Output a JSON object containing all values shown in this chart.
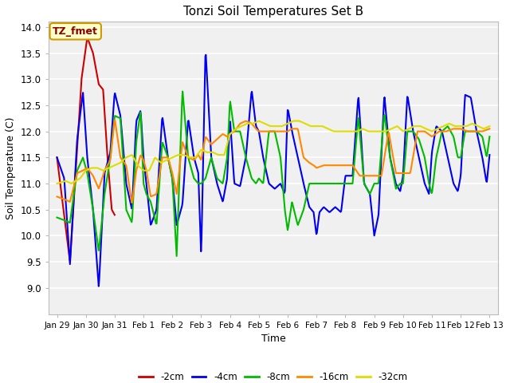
{
  "title": "Tonzi Soil Temperatures Set B",
  "xlabel": "Time",
  "ylabel": "Soil Temperature (C)",
  "ylim": [
    8.5,
    14.1
  ],
  "yticks": [
    9.0,
    9.5,
    10.0,
    10.5,
    11.0,
    11.5,
    12.0,
    12.5,
    13.0,
    13.5,
    14.0
  ],
  "annotation_label": "TZ_fmet",
  "fig_bg": "#ffffff",
  "plot_bg": "#ffffff",
  "grid_color": "#dddddd",
  "xtick_labels": [
    "Jan 29",
    "Jan 30",
    "Jan 31",
    "Feb 1",
    "Feb 2",
    "Feb 3",
    "Feb 4",
    "Feb 5",
    "Feb 6",
    "Feb 7",
    "Feb 8",
    "Feb 9",
    "Feb 10",
    "Feb 11",
    "Feb 12",
    "Feb 13"
  ],
  "xtick_positions": [
    0,
    1,
    2,
    3,
    4,
    5,
    6,
    7,
    8,
    9,
    10,
    11,
    12,
    13,
    14,
    15
  ],
  "legend_entries": [
    "-2cm",
    "-4cm",
    "-8cm",
    "-16cm",
    "-32cm"
  ],
  "legend_colors": [
    "#cc0000",
    "#0000ee",
    "#00bb00",
    "#ff8800",
    "#dddd00"
  ],
  "series_colors": {
    "-2cm": "#cc0000",
    "-4cm": "#0000ee",
    "-8cm": "#00bb00",
    "-16cm": "#ff8800",
    "-32cm": "#dddd00"
  },
  "red_x": [
    0.0,
    0.45,
    0.85,
    1.05,
    1.25,
    1.45,
    1.6,
    1.75,
    1.9,
    2.0
  ],
  "red_y": [
    11.5,
    9.5,
    13.0,
    13.8,
    13.5,
    12.9,
    12.8,
    11.5,
    10.5,
    10.4
  ],
  "blue_x": [
    0.0,
    0.25,
    0.45,
    0.7,
    0.9,
    1.05,
    1.25,
    1.45,
    1.65,
    1.85,
    2.0,
    2.2,
    2.4,
    2.6,
    2.75,
    2.9,
    3.0,
    3.1,
    3.25,
    3.45,
    3.65,
    3.85,
    4.0,
    4.15,
    4.35,
    4.55,
    4.75,
    4.9,
    5.0,
    5.15,
    5.35,
    5.55,
    5.75,
    5.9,
    6.0,
    6.15,
    6.35,
    6.55,
    6.75,
    6.9,
    7.0,
    7.15,
    7.35,
    7.55,
    7.75,
    7.9,
    8.0,
    8.15,
    8.35,
    8.55,
    8.75,
    8.9,
    9.0,
    9.1,
    9.25,
    9.45,
    9.65,
    9.85,
    10.0,
    10.1,
    10.25,
    10.45,
    10.65,
    10.85,
    11.0,
    11.15,
    11.35,
    11.55,
    11.75,
    11.9,
    12.0,
    12.15,
    12.35,
    12.55,
    12.75,
    12.9,
    13.0,
    13.15,
    13.35,
    13.55,
    13.75,
    13.9,
    14.0,
    14.15,
    14.35,
    14.55,
    14.75,
    14.9,
    15.0
  ],
  "blue_y": [
    11.5,
    11.1,
    9.45,
    11.85,
    12.75,
    11.5,
    10.5,
    9.0,
    11.2,
    11.6,
    12.75,
    12.3,
    11.0,
    10.5,
    12.2,
    12.4,
    11.5,
    11.0,
    10.2,
    10.5,
    12.3,
    11.5,
    11.1,
    10.2,
    10.6,
    12.25,
    11.5,
    11.2,
    9.6,
    13.6,
    11.5,
    11.0,
    10.65,
    11.1,
    12.25,
    11.0,
    10.95,
    11.5,
    12.8,
    12.1,
    12.0,
    11.5,
    11.0,
    10.9,
    11.0,
    10.8,
    12.45,
    12.0,
    11.5,
    11.0,
    10.55,
    10.45,
    10.0,
    10.45,
    10.55,
    10.45,
    10.55,
    10.45,
    11.15,
    11.15,
    11.15,
    12.7,
    11.0,
    10.8,
    10.0,
    10.4,
    12.7,
    11.5,
    11.0,
    10.85,
    11.15,
    12.7,
    12.0,
    11.5,
    11.0,
    10.8,
    11.6,
    12.1,
    12.0,
    11.5,
    11.0,
    10.85,
    11.15,
    12.7,
    12.65,
    12.0,
    11.5,
    11.0,
    11.55
  ],
  "green_x": [
    0.0,
    0.25,
    0.45,
    0.7,
    0.9,
    1.05,
    1.25,
    1.45,
    1.65,
    1.85,
    2.0,
    2.2,
    2.4,
    2.6,
    2.75,
    2.9,
    3.0,
    3.1,
    3.25,
    3.45,
    3.65,
    3.85,
    4.0,
    4.15,
    4.35,
    4.55,
    4.75,
    4.9,
    5.0,
    5.15,
    5.35,
    5.55,
    5.75,
    5.9,
    6.0,
    6.15,
    6.35,
    6.55,
    6.75,
    6.9,
    7.0,
    7.15,
    7.35,
    7.55,
    7.75,
    7.9,
    8.0,
    8.15,
    8.35,
    8.55,
    8.75,
    8.9,
    9.0,
    9.1,
    9.25,
    9.45,
    9.65,
    9.85,
    10.0,
    10.1,
    10.25,
    10.45,
    10.65,
    10.85,
    11.0,
    11.15,
    11.35,
    11.55,
    11.75,
    11.9,
    12.0,
    12.15,
    12.35,
    12.55,
    12.75,
    12.9,
    13.0,
    13.15,
    13.35,
    13.55,
    13.75,
    13.9,
    14.0,
    14.15,
    14.35,
    14.55,
    14.75,
    14.9,
    15.0
  ],
  "green_y": [
    10.35,
    10.3,
    10.25,
    11.25,
    11.5,
    11.2,
    10.5,
    9.7,
    10.8,
    11.5,
    12.3,
    12.25,
    10.5,
    10.25,
    11.8,
    12.4,
    11.0,
    10.8,
    10.65,
    10.2,
    11.8,
    11.5,
    11.1,
    9.6,
    12.8,
    11.5,
    11.1,
    11.0,
    11.0,
    11.1,
    11.5,
    11.1,
    11.0,
    11.5,
    12.6,
    12.0,
    12.0,
    11.5,
    11.1,
    11.0,
    11.1,
    11.0,
    12.0,
    12.0,
    11.5,
    10.5,
    10.1,
    10.65,
    10.2,
    10.5,
    11.0,
    11.0,
    11.0,
    11.0,
    11.0,
    11.0,
    11.0,
    11.0,
    11.0,
    11.0,
    11.0,
    12.3,
    11.0,
    10.8,
    11.0,
    11.0,
    12.35,
    11.5,
    10.9,
    11.0,
    11.0,
    12.0,
    12.0,
    11.85,
    11.5,
    11.0,
    10.8,
    11.5,
    12.0,
    12.1,
    11.9,
    11.5,
    11.5,
    12.0,
    12.0,
    12.0,
    11.9,
    11.5,
    11.9
  ],
  "orange_x": [
    0.0,
    0.25,
    0.45,
    0.7,
    0.9,
    1.05,
    1.25,
    1.45,
    1.65,
    1.85,
    2.0,
    2.2,
    2.4,
    2.6,
    2.75,
    2.9,
    3.0,
    3.1,
    3.25,
    3.45,
    3.65,
    3.85,
    4.0,
    4.15,
    4.35,
    4.55,
    4.75,
    4.9,
    5.0,
    5.15,
    5.35,
    5.55,
    5.75,
    5.9,
    6.0,
    6.15,
    6.35,
    6.55,
    6.75,
    6.9,
    7.0,
    7.15,
    7.35,
    7.55,
    7.75,
    7.9,
    8.0,
    8.15,
    8.35,
    8.55,
    8.75,
    8.9,
    9.0,
    9.25,
    9.5,
    9.75,
    10.0,
    10.25,
    10.5,
    10.75,
    11.0,
    11.25,
    11.5,
    11.75,
    12.0,
    12.25,
    12.5,
    12.75,
    13.0,
    13.25,
    13.5,
    13.75,
    14.0,
    14.25,
    14.5,
    14.75,
    15.0
  ],
  "orange_y": [
    10.75,
    10.7,
    10.65,
    11.2,
    11.25,
    11.3,
    11.15,
    10.9,
    11.25,
    11.45,
    12.25,
    11.5,
    11.35,
    10.6,
    11.25,
    11.55,
    11.45,
    11.25,
    10.75,
    10.8,
    11.5,
    11.5,
    11.2,
    10.8,
    11.8,
    11.5,
    11.45,
    11.55,
    11.45,
    11.9,
    11.75,
    11.85,
    11.95,
    11.9,
    11.95,
    12.0,
    12.15,
    12.2,
    12.15,
    12.05,
    12.0,
    12.0,
    12.0,
    12.0,
    12.0,
    12.0,
    12.0,
    12.05,
    12.05,
    11.5,
    11.4,
    11.35,
    11.3,
    11.35,
    11.35,
    11.35,
    11.35,
    11.35,
    11.15,
    11.15,
    11.15,
    11.15,
    12.0,
    11.2,
    11.2,
    11.2,
    12.0,
    12.0,
    11.9,
    12.0,
    12.0,
    12.05,
    12.05,
    12.0,
    12.0,
    12.0,
    12.05
  ],
  "yellow_x": [
    0.0,
    0.3,
    0.5,
    0.8,
    1.0,
    1.2,
    1.4,
    1.6,
    1.8,
    2.0,
    2.2,
    2.4,
    2.6,
    2.8,
    3.0,
    3.2,
    3.4,
    3.6,
    3.8,
    4.0,
    4.2,
    4.4,
    4.6,
    4.8,
    5.0,
    5.2,
    5.4,
    5.6,
    5.8,
    6.0,
    6.2,
    6.4,
    6.6,
    6.8,
    7.0,
    7.2,
    7.4,
    7.6,
    7.8,
    8.0,
    8.2,
    8.4,
    8.6,
    8.8,
    9.0,
    9.2,
    9.4,
    9.6,
    9.8,
    10.0,
    10.2,
    10.4,
    10.6,
    10.8,
    11.0,
    11.2,
    11.4,
    11.6,
    11.8,
    12.0,
    12.2,
    12.4,
    12.6,
    12.8,
    13.0,
    13.2,
    13.4,
    13.6,
    13.8,
    14.0,
    14.2,
    14.4,
    14.6,
    14.8,
    15.0
  ],
  "yellow_y": [
    11.0,
    11.05,
    11.0,
    11.1,
    11.25,
    11.3,
    11.3,
    11.25,
    11.3,
    11.35,
    11.4,
    11.5,
    11.55,
    11.35,
    11.25,
    11.25,
    11.5,
    11.4,
    11.45,
    11.5,
    11.55,
    11.55,
    11.5,
    11.5,
    11.65,
    11.6,
    11.6,
    11.55,
    11.55,
    11.95,
    12.05,
    12.1,
    12.15,
    12.15,
    12.2,
    12.15,
    12.1,
    12.1,
    12.1,
    12.15,
    12.2,
    12.2,
    12.15,
    12.1,
    12.1,
    12.1,
    12.05,
    12.0,
    12.0,
    12.0,
    12.0,
    12.0,
    12.05,
    12.0,
    12.0,
    12.0,
    12.0,
    12.05,
    12.1,
    12.0,
    12.05,
    12.1,
    12.1,
    12.05,
    12.0,
    12.05,
    12.1,
    12.15,
    12.1,
    12.1,
    12.1,
    12.15,
    12.1,
    12.05,
    12.1
  ]
}
